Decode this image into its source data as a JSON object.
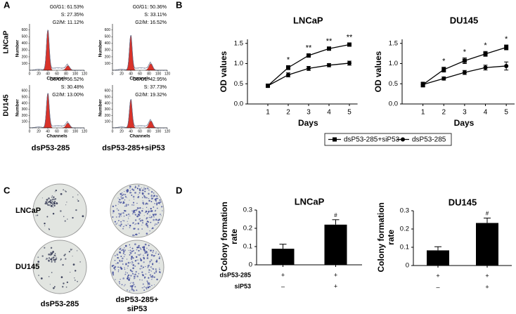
{
  "panel_labels": [
    "A",
    "B",
    "C",
    "D"
  ],
  "panel_a": {
    "rows": [
      "LNCaP",
      "DU145"
    ],
    "columns": [
      "dsP53-285",
      "dsP53-285+siP53"
    ],
    "xlabel": "Channels",
    "ylabel": "Number",
    "xticks": [
      0,
      20,
      40,
      60,
      80,
      100,
      120
    ],
    "yticks": [
      100,
      200,
      300,
      400,
      500,
      600
    ],
    "stats": [
      [
        [
          "G0/G1: 61.53%",
          "S: 27.35%",
          "G2/M: 11.12%"
        ],
        [
          "G0/G1: 50.36%",
          "S: 33.11%",
          "G2/M: 16.52%"
        ]
      ],
      [
        [
          "G0/G1: 56.52%",
          "S: 30.48%",
          "G2/M: 13.00%"
        ],
        [
          "G0/G1: 42.95%",
          "S: 37.73%",
          "G2/M: 19.32%"
        ]
      ]
    ]
  },
  "panel_c": {
    "rows": [
      "LNCaP",
      "DU145"
    ],
    "columns": [
      "dsP53-285",
      "dsP53-285+\nsiP53"
    ]
  },
  "chart_data": [
    {
      "type": "line",
      "title": "LNCaP",
      "xlabel": "Days",
      "ylabel": "OD values",
      "x": [
        1,
        2,
        3,
        4,
        5
      ],
      "xlim": [
        0,
        5.4
      ],
      "xticks": [
        1,
        2,
        3,
        4,
        5
      ],
      "ylim": [
        0,
        1.6
      ],
      "yticks": [
        {
          "value": 0,
          "label": "0.0"
        },
        0.5,
        {
          "value": 1,
          "label": "1.0"
        },
        1.5
      ],
      "legend": "bottom",
      "series": [
        {
          "name": "dsP53-285+siP53",
          "color": "#000000",
          "marker": "square",
          "values": [
            0.45,
            0.9,
            1.2,
            1.37,
            1.47
          ],
          "errors": [
            0.04,
            0.05,
            0.04,
            0.04,
            0.03
          ]
        },
        {
          "name": "dsP53-285",
          "color": "#000000",
          "marker": "circle",
          "values": [
            0.45,
            0.72,
            0.88,
            0.96,
            1.01
          ],
          "errors": [
            0.04,
            0.05,
            0.05,
            0.04,
            0.05
          ]
        }
      ],
      "annotations": [
        {
          "x": 2,
          "text": "*"
        },
        {
          "x": 3,
          "text": "**"
        },
        {
          "x": 4,
          "text": "**"
        },
        {
          "x": 5,
          "text": "**"
        }
      ]
    },
    {
      "type": "line",
      "title": "DU145",
      "xlabel": "Days",
      "ylabel": "OD values",
      "x": [
        1,
        2,
        3,
        4,
        5
      ],
      "xlim": [
        0,
        5.4
      ],
      "xticks": [
        1,
        2,
        3,
        4,
        5
      ],
      "ylim": [
        0,
        1.6
      ],
      "yticks": [
        {
          "value": 0,
          "label": "0.0"
        },
        0.5,
        {
          "value": 1,
          "label": "1.0"
        },
        1.5
      ],
      "series": [
        {
          "color": "#000000",
          "marker": "square",
          "values": [
            0.48,
            0.85,
            1.07,
            1.24,
            1.4
          ],
          "errors": [
            0.06,
            0.06,
            0.07,
            0.06,
            0.06
          ]
        },
        {
          "color": "#000000",
          "marker": "circle",
          "values": [
            0.48,
            0.63,
            0.78,
            0.9,
            0.94
          ],
          "errors": [
            0.05,
            0.04,
            0.05,
            0.06,
            0.1
          ]
        }
      ],
      "annotations": [
        {
          "x": 2,
          "text": "*"
        },
        {
          "x": 3,
          "text": "*"
        },
        {
          "x": 4,
          "text": "*"
        },
        {
          "x": 5,
          "text": "*"
        }
      ]
    },
    {
      "type": "bar",
      "title": "LNCaP",
      "ylabel": "Colony formation rate",
      "color": "#000000",
      "categories": [
        null,
        null
      ],
      "values": [
        0.088,
        0.22
      ],
      "errors": [
        0.025,
        0.027
      ],
      "ylim": [
        0,
        0.3
      ],
      "yticks": [
        0,
        0.1,
        0.2,
        0.3
      ],
      "annotations": [
        {
          "bar": 1,
          "text": "#"
        }
      ],
      "conditions": [
        {
          "name": "dsP53-285",
          "marks": [
            "+",
            "+"
          ]
        },
        {
          "name": "siP53",
          "marks": [
            "–",
            "+"
          ]
        }
      ]
    },
    {
      "type": "bar",
      "title": "DU145",
      "ylabel": "Colony formation rate",
      "color": "#000000",
      "categories": [
        null,
        null
      ],
      "values": [
        0.083,
        0.233
      ],
      "errors": [
        0.02,
        0.027
      ],
      "ylim": [
        0,
        0.3
      ],
      "yticks": [
        0,
        0.1,
        0.2,
        0.3
      ],
      "annotations": [
        {
          "bar": 1,
          "text": "#"
        }
      ],
      "conditions": [
        {
          "marks": [
            "+",
            "+"
          ]
        },
        {
          "marks": [
            "–",
            "+"
          ]
        }
      ]
    }
  ]
}
